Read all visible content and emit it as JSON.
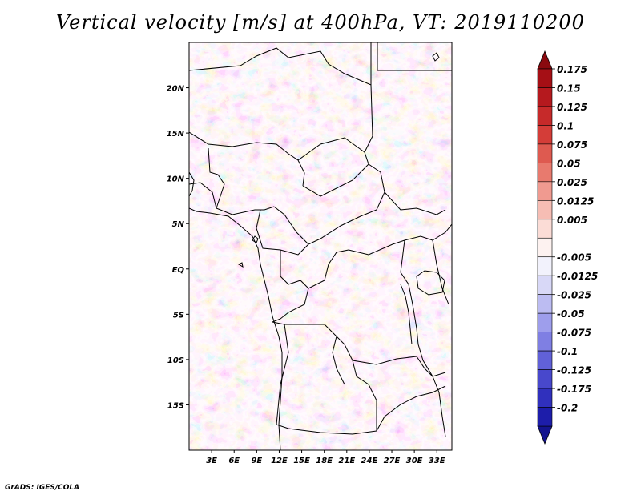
{
  "title": "Vertical velocity [m/s] at 400hPa, VT: 2019110200",
  "credit": "GrADS: IGES/COLA",
  "map": {
    "lon_range": [
      0,
      35
    ],
    "lat_range": [
      -20,
      25
    ],
    "lat_ticks": [
      {
        "value": 20,
        "label": "20N"
      },
      {
        "value": 15,
        "label": "15N"
      },
      {
        "value": 10,
        "label": "10N"
      },
      {
        "value": 5,
        "label": "5N"
      },
      {
        "value": 0,
        "label": "EQ"
      },
      {
        "value": -5,
        "label": "5S"
      },
      {
        "value": -10,
        "label": "10S"
      },
      {
        "value": -15,
        "label": "15S"
      }
    ],
    "lon_ticks": [
      {
        "value": 3,
        "label": "3E"
      },
      {
        "value": 6,
        "label": "6E"
      },
      {
        "value": 9,
        "label": "9E"
      },
      {
        "value": 12,
        "label": "12E"
      },
      {
        "value": 15,
        "label": "15E"
      },
      {
        "value": 18,
        "label": "18E"
      },
      {
        "value": 21,
        "label": "21E"
      },
      {
        "value": 24,
        "label": "24E"
      },
      {
        "value": 27,
        "label": "27E"
      },
      {
        "value": 30,
        "label": "30E"
      },
      {
        "value": 33,
        "label": "33E"
      }
    ]
  },
  "colorbar": {
    "levels": [
      {
        "label": "0.175",
        "color": "#a50f15"
      },
      {
        "label": "0.15",
        "color": "#b5191e"
      },
      {
        "label": "0.125",
        "color": "#c62a2a"
      },
      {
        "label": "0.1",
        "color": "#d43d38"
      },
      {
        "label": "0.075",
        "color": "#de5a50"
      },
      {
        "label": "0.05",
        "color": "#e87a6e"
      },
      {
        "label": "0.025",
        "color": "#f09a90"
      },
      {
        "label": "0.0125",
        "color": "#f6bdb4"
      },
      {
        "label": "0.005",
        "color": "#fbdcd6"
      },
      {
        "label": "",
        "color": "#fdf2f0"
      },
      {
        "label": "-0.005",
        "color": "#f2f2fc"
      },
      {
        "label": "-0.0125",
        "color": "#d8d8f7"
      },
      {
        "label": "-0.025",
        "color": "#bcbcf2"
      },
      {
        "label": "-0.05",
        "color": "#9e9eec"
      },
      {
        "label": "-0.075",
        "color": "#7f7fe3"
      },
      {
        "label": "-0.1",
        "color": "#6161d8"
      },
      {
        "label": "-0.125",
        "color": "#4848cc"
      },
      {
        "label": "-0.175",
        "color": "#3030bd"
      },
      {
        "label": "-0.2",
        "color": "#1d1daa"
      }
    ],
    "top_color": "#8a0a0f",
    "bottom_color": "#14148f"
  }
}
